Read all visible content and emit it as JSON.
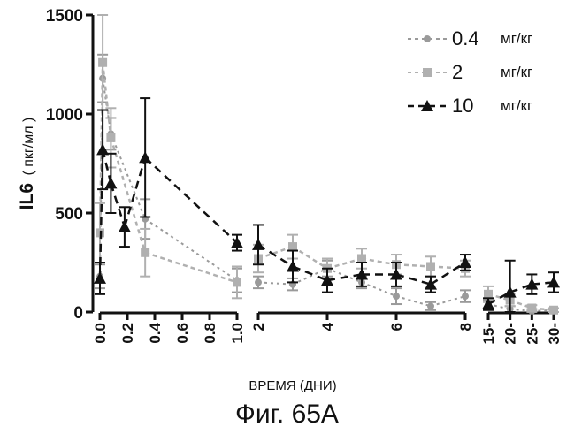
{
  "chart_data": {
    "type": "line",
    "title": "",
    "xlabel": "ВРЕМЯ (ДНИ)",
    "ylabel_bold": "IL6",
    "ylabel_units": "( пкг/мл )",
    "ylim": [
      0,
      1500
    ],
    "y_ticks": [
      0,
      500,
      1000,
      1500
    ],
    "y_tick_labels": [
      "0",
      "500",
      "1000",
      "1500"
    ],
    "x_segments": [
      {
        "range": [
          0,
          1.0
        ],
        "ticks": [
          0.0,
          0.2,
          0.4,
          0.6,
          0.8,
          1.0
        ],
        "tick_labels": [
          "0.0",
          "0.2",
          "0.4",
          "0.6",
          "0.8",
          "1.0"
        ]
      },
      {
        "range": [
          2,
          8
        ],
        "ticks": [
          2,
          4,
          6,
          8
        ],
        "tick_labels": [
          "2",
          "4",
          "6",
          "8"
        ]
      },
      {
        "range": [
          15,
          30
        ],
        "ticks": [
          15,
          20,
          25,
          30
        ],
        "tick_labels": [
          "15-",
          "20-",
          "25-",
          "30-"
        ]
      }
    ],
    "legend": {
      "position": "top-right"
    },
    "series": [
      {
        "name_value": "0.4",
        "name_unit": "мг/кг",
        "marker": "circle",
        "color": "#9a9a9a",
        "points": [
          {
            "x": 0.0,
            "y": 180,
            "err": 60
          },
          {
            "x": 0.02,
            "y": 1180,
            "err": 120
          },
          {
            "x": 0.08,
            "y": 900,
            "err": 80
          },
          {
            "x": 0.33,
            "y": 470,
            "err": 100
          },
          {
            "x": 1.0,
            "y": 160,
            "err": 60
          },
          {
            "x": 2,
            "y": 150,
            "err": 30
          },
          {
            "x": 3,
            "y": 140,
            "err": 30
          },
          {
            "x": 4,
            "y": 220,
            "err": 40
          },
          {
            "x": 5,
            "y": 150,
            "err": 30
          },
          {
            "x": 6,
            "y": 80,
            "err": 40
          },
          {
            "x": 7,
            "y": 30,
            "err": 20
          },
          {
            "x": 8,
            "y": 80,
            "err": 30
          },
          {
            "x": 15,
            "y": 40,
            "err": 20
          },
          {
            "x": 20,
            "y": 15,
            "err": 15
          },
          {
            "x": 25,
            "y": 5,
            "err": 10
          },
          {
            "x": 30,
            "y": 10,
            "err": 10
          }
        ]
      },
      {
        "name_value": "2",
        "name_unit": "мг/кг",
        "marker": "square",
        "color": "#b0b0b0",
        "points": [
          {
            "x": 0.0,
            "y": 400,
            "err": 150
          },
          {
            "x": 0.02,
            "y": 1260,
            "err": 240
          },
          {
            "x": 0.08,
            "y": 880,
            "err": 150
          },
          {
            "x": 0.33,
            "y": 300,
            "err": 120
          },
          {
            "x": 1.0,
            "y": 150,
            "err": 80
          },
          {
            "x": 2,
            "y": 270,
            "err": 70
          },
          {
            "x": 3,
            "y": 330,
            "err": 60
          },
          {
            "x": 4,
            "y": 220,
            "err": 50
          },
          {
            "x": 5,
            "y": 270,
            "err": 50
          },
          {
            "x": 6,
            "y": 240,
            "err": 50
          },
          {
            "x": 7,
            "y": 230,
            "err": 50
          },
          {
            "x": 8,
            "y": 220,
            "err": 40
          },
          {
            "x": 15,
            "y": 90,
            "err": 40
          },
          {
            "x": 20,
            "y": 60,
            "err": 30
          },
          {
            "x": 25,
            "y": 20,
            "err": 15
          },
          {
            "x": 30,
            "y": 10,
            "err": 10
          }
        ]
      },
      {
        "name_value": "10",
        "name_unit": "мг/кг",
        "marker": "triangle",
        "color": "#111111",
        "points": [
          {
            "x": 0.0,
            "y": 170,
            "err": 80
          },
          {
            "x": 0.02,
            "y": 820,
            "err": 200
          },
          {
            "x": 0.08,
            "y": 650,
            "err": 150
          },
          {
            "x": 0.18,
            "y": 430,
            "err": 100
          },
          {
            "x": 0.33,
            "y": 780,
            "err": 300
          },
          {
            "x": 1.0,
            "y": 350,
            "err": 40
          },
          {
            "x": 2,
            "y": 340,
            "err": 100
          },
          {
            "x": 3,
            "y": 230,
            "err": 80
          },
          {
            "x": 4,
            "y": 160,
            "err": 60
          },
          {
            "x": 5,
            "y": 190,
            "err": 60
          },
          {
            "x": 6,
            "y": 190,
            "err": 60
          },
          {
            "x": 7,
            "y": 140,
            "err": 40
          },
          {
            "x": 8,
            "y": 250,
            "err": 40
          },
          {
            "x": 15,
            "y": 40,
            "err": 30
          },
          {
            "x": 20,
            "y": 100,
            "err": 160
          },
          {
            "x": 25,
            "y": 140,
            "err": 50
          },
          {
            "x": 30,
            "y": 150,
            "err": 50
          }
        ]
      }
    ]
  },
  "caption": "Фиг. 65A"
}
